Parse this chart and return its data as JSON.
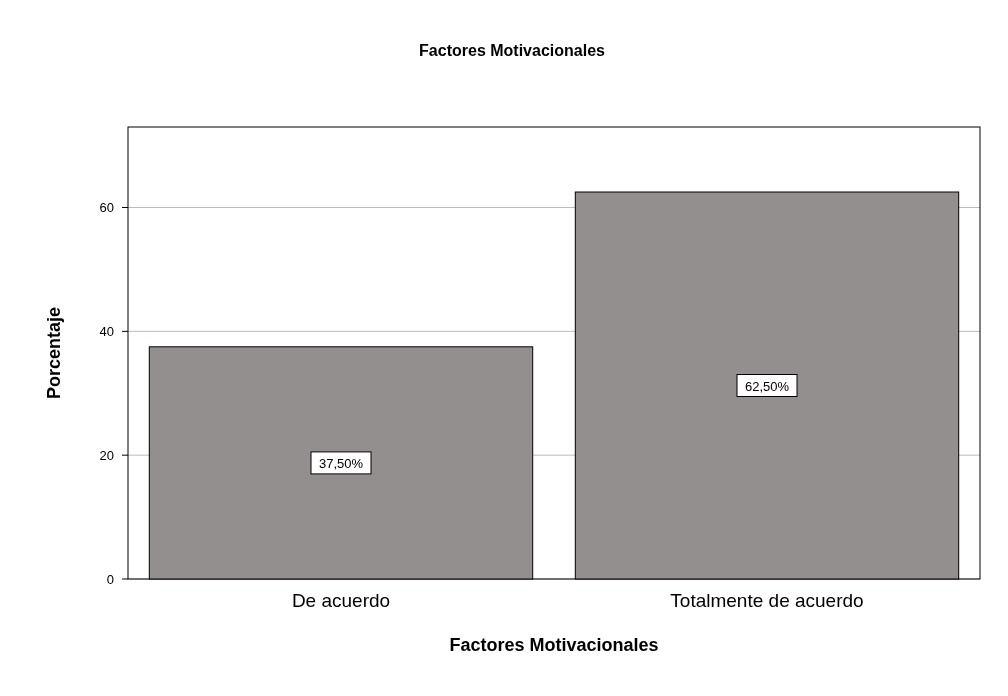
{
  "chart_data": {
    "type": "bar",
    "title": "Factores Motivacionales",
    "xlabel": "Factores Motivacionales",
    "ylabel": "Porcentaje",
    "categories": [
      "De acuerdo",
      "Totalmente de acuerdo"
    ],
    "values": [
      37.5,
      62.5
    ],
    "value_labels": [
      "37,50%",
      "62,50%"
    ],
    "color": "#948f8f",
    "ylim": [
      0,
      73
    ],
    "yticks": [
      0,
      20,
      40,
      60
    ],
    "grid": "y"
  }
}
